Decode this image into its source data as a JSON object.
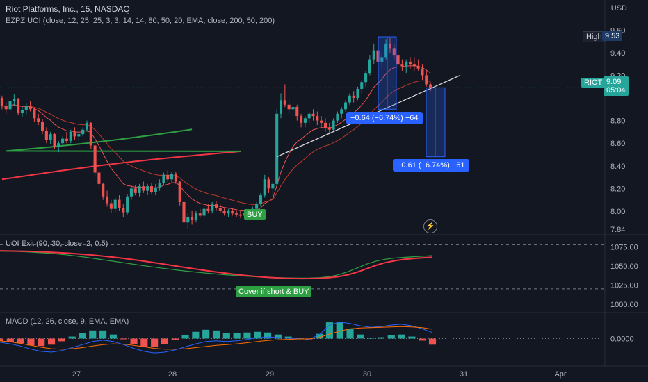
{
  "header": {
    "title": "Riot Platforms, Inc., 15, NASDAQ",
    "indicator": "EZPZ UOI (close, 12, 25, 25, 3, 3, 14, 14, 80, 50, 20, EMA, close, 200, 50, 200)",
    "currency": "USD"
  },
  "price_tags": {
    "high_label": "High",
    "high_value": "9.53",
    "symbol": "RIOT",
    "last_value": "9.09",
    "countdown": "05:04"
  },
  "measurements": {
    "upper": "−0.64 (−6.74%) −64",
    "lower": "−0.61 (−6.74%) −61"
  },
  "signals": {
    "buy": "BUY",
    "cover": "Cover if short & BUY"
  },
  "panes": {
    "uoi_label": "UOI Exit (90, 30, close, 2, 0.5)",
    "macd_label": "MACD (12, 26, close, 9, EMA, EMA)"
  },
  "colors": {
    "background": "#131722",
    "up": "#26a69a",
    "down": "#ef5350",
    "ema_long": "#f23645",
    "ema_green": "#2ea043",
    "measure": "#2962ff"
  },
  "icons": {
    "alert": "lightning-bolt-icon"
  },
  "chart_data": {
    "type": "candlestick",
    "x_ticks": [
      "27",
      "28",
      "29",
      "30",
      "31",
      "Apr"
    ],
    "price_axis": {
      "ticks": [
        "9.60",
        "9.40",
        "9.20",
        "8.80",
        "8.60",
        "8.40",
        "8.20",
        "8.00",
        "7.84"
      ],
      "ylim": [
        7.84,
        9.62
      ]
    },
    "uoi_axis": {
      "ticks": [
        "1075.00",
        "1050.00",
        "1025.00",
        "1000.00"
      ],
      "ylim": [
        998,
        1082
      ]
    },
    "macd_axis": {
      "ticks": [
        "0.0000"
      ],
      "ylim": [
        -0.06,
        0.06
      ]
    },
    "candles_ohlc": [
      [
        9.0,
        9.02,
        8.9,
        8.93
      ],
      [
        8.93,
        8.96,
        8.86,
        8.9
      ],
      [
        8.9,
        9.0,
        8.88,
        8.97
      ],
      [
        8.97,
        9.03,
        8.93,
        8.99
      ],
      [
        8.99,
        9.0,
        8.85,
        8.87
      ],
      [
        8.87,
        8.92,
        8.83,
        8.89
      ],
      [
        8.89,
        8.95,
        8.85,
        8.93
      ],
      [
        8.93,
        8.97,
        8.88,
        8.9
      ],
      [
        8.9,
        8.91,
        8.79,
        8.82
      ],
      [
        8.82,
        8.86,
        8.76,
        8.79
      ],
      [
        8.79,
        8.81,
        8.68,
        8.71
      ],
      [
        8.71,
        8.74,
        8.6,
        8.63
      ],
      [
        8.63,
        8.7,
        8.59,
        8.68
      ],
      [
        8.68,
        8.69,
        8.55,
        8.57
      ],
      [
        8.57,
        8.62,
        8.52,
        8.6
      ],
      [
        8.6,
        8.66,
        8.58,
        8.64
      ],
      [
        8.64,
        8.7,
        8.6,
        8.62
      ],
      [
        8.62,
        8.72,
        8.6,
        8.7
      ],
      [
        8.7,
        8.74,
        8.63,
        8.66
      ],
      [
        8.66,
        8.71,
        8.62,
        8.68
      ],
      [
        8.68,
        8.74,
        8.66,
        8.72
      ],
      [
        8.72,
        8.8,
        8.7,
        8.78
      ],
      [
        8.78,
        8.79,
        8.55,
        8.58
      ],
      [
        8.58,
        8.6,
        8.3,
        8.34
      ],
      [
        8.34,
        8.36,
        8.2,
        8.24
      ],
      [
        8.24,
        8.25,
        8.1,
        8.13
      ],
      [
        8.13,
        8.18,
        8.04,
        8.07
      ],
      [
        8.07,
        8.1,
        7.98,
        8.02
      ],
      [
        8.02,
        8.12,
        7.99,
        8.1
      ],
      [
        8.1,
        8.14,
        8.0,
        8.03
      ],
      [
        8.03,
        8.06,
        7.95,
        7.99
      ],
      [
        7.99,
        8.15,
        7.97,
        8.13
      ],
      [
        8.13,
        8.22,
        8.1,
        8.2
      ],
      [
        8.2,
        8.23,
        8.14,
        8.16
      ],
      [
        8.16,
        8.24,
        8.13,
        8.22
      ],
      [
        8.22,
        8.26,
        8.16,
        8.18
      ],
      [
        8.18,
        8.24,
        8.14,
        8.22
      ],
      [
        8.22,
        8.25,
        8.15,
        8.17
      ],
      [
        8.17,
        8.24,
        8.14,
        8.21
      ],
      [
        8.21,
        8.28,
        8.18,
        8.25
      ],
      [
        8.25,
        8.34,
        8.23,
        8.32
      ],
      [
        8.32,
        8.36,
        8.26,
        8.28
      ],
      [
        8.28,
        8.35,
        8.25,
        8.33
      ],
      [
        8.33,
        8.35,
        8.24,
        8.26
      ],
      [
        8.26,
        8.27,
        8.05,
        8.08
      ],
      [
        8.08,
        8.09,
        7.86,
        7.9
      ],
      [
        7.9,
        7.98,
        7.84,
        7.95
      ],
      [
        7.95,
        8.0,
        7.88,
        7.92
      ],
      [
        7.92,
        8.0,
        7.9,
        7.98
      ],
      [
        7.98,
        8.02,
        7.94,
        7.96
      ],
      [
        7.96,
        8.04,
        7.94,
        8.02
      ],
      [
        8.02,
        8.06,
        7.98,
        8.0
      ],
      [
        8.0,
        8.08,
        7.98,
        8.06
      ],
      [
        8.06,
        8.09,
        8.0,
        8.03
      ],
      [
        8.03,
        8.06,
        7.98,
        8.0
      ],
      [
        8.0,
        8.03,
        7.96,
        7.98
      ],
      [
        7.98,
        8.02,
        7.95,
        8.0
      ],
      [
        8.0,
        8.03,
        7.96,
        7.98
      ],
      [
        7.98,
        8.01,
        7.95,
        7.97
      ],
      [
        7.97,
        8.0,
        7.94,
        7.96
      ],
      [
        7.96,
        8.0,
        7.94,
        7.98
      ],
      [
        7.98,
        8.0,
        7.95,
        7.97
      ],
      [
        7.97,
        8.04,
        7.96,
        8.02
      ],
      [
        8.02,
        8.08,
        8.0,
        8.06
      ],
      [
        8.06,
        8.16,
        8.04,
        8.14
      ],
      [
        8.14,
        8.32,
        8.12,
        8.28
      ],
      [
        8.28,
        8.3,
        8.16,
        8.2
      ],
      [
        8.2,
        8.26,
        8.14,
        8.24
      ],
      [
        8.24,
        8.9,
        8.22,
        8.86
      ],
      [
        8.86,
        9.04,
        8.82,
        8.98
      ],
      [
        8.98,
        9.12,
        8.92,
        8.94
      ],
      [
        8.94,
        8.98,
        8.86,
        8.9
      ],
      [
        8.9,
        8.96,
        8.84,
        8.92
      ],
      [
        8.92,
        8.94,
        8.8,
        8.84
      ],
      [
        8.84,
        8.86,
        8.74,
        8.78
      ],
      [
        8.78,
        8.84,
        8.74,
        8.82
      ],
      [
        8.82,
        8.88,
        8.78,
        8.86
      ],
      [
        8.86,
        8.9,
        8.8,
        8.84
      ],
      [
        8.84,
        8.88,
        8.76,
        8.8
      ],
      [
        8.8,
        8.84,
        8.74,
        8.78
      ],
      [
        8.78,
        8.82,
        8.7,
        8.74
      ],
      [
        8.74,
        8.78,
        8.68,
        8.72
      ],
      [
        8.72,
        8.82,
        8.7,
        8.8
      ],
      [
        8.8,
        8.88,
        8.78,
        8.86
      ],
      [
        8.86,
        8.92,
        8.82,
        8.9
      ],
      [
        8.9,
        8.98,
        8.88,
        8.96
      ],
      [
        8.96,
        9.04,
        8.94,
        9.02
      ],
      [
        9.02,
        9.06,
        8.96,
        9.0
      ],
      [
        9.0,
        9.1,
        8.98,
        9.08
      ],
      [
        9.08,
        9.16,
        9.04,
        9.14
      ],
      [
        9.14,
        9.24,
        9.1,
        9.22
      ],
      [
        9.22,
        9.38,
        9.2,
        9.34
      ],
      [
        9.34,
        9.48,
        9.3,
        9.42
      ],
      [
        9.42,
        9.46,
        9.28,
        9.32
      ],
      [
        9.32,
        9.4,
        9.26,
        9.36
      ],
      [
        9.36,
        9.52,
        9.34,
        9.48
      ],
      [
        9.48,
        9.53,
        9.4,
        9.44
      ],
      [
        9.44,
        9.48,
        9.34,
        9.38
      ],
      [
        9.38,
        9.42,
        9.28,
        9.3
      ],
      [
        9.3,
        9.34,
        9.24,
        9.28
      ],
      [
        9.28,
        9.34,
        9.22,
        9.32
      ],
      [
        9.32,
        9.36,
        9.26,
        9.3
      ],
      [
        9.3,
        9.36,
        9.24,
        9.28
      ],
      [
        9.28,
        9.34,
        9.24,
        9.26
      ],
      [
        9.26,
        9.3,
        9.16,
        9.2
      ],
      [
        9.2,
        9.24,
        9.1,
        9.12
      ],
      [
        9.12,
        9.14,
        9.06,
        9.09
      ]
    ],
    "uoi_series": {
      "green": [
        1069.6,
        1069.3,
        1069.0,
        1068.5,
        1067.8,
        1067.0,
        1066.0,
        1064.8,
        1063.4,
        1061.8,
        1060.0,
        1058.2,
        1056.4,
        1054.6,
        1052.8,
        1051.0,
        1049.3,
        1047.6,
        1046.0,
        1044.5,
        1043.1,
        1041.8,
        1040.6,
        1039.5,
        1038.5,
        1037.6,
        1036.8,
        1036.1,
        1035.5,
        1035.0,
        1034.6,
        1034.3,
        1034.2,
        1034.3,
        1034.8,
        1036.0,
        1038.5,
        1042.5,
        1047.5,
        1052.5,
        1056.5,
        1059.0,
        1060.5,
        1061.5,
        1062.3,
        1063.0,
        1063.7
      ],
      "red": [
        1070.0,
        1069.8,
        1069.6,
        1069.3,
        1068.9,
        1068.4,
        1067.8,
        1067.1,
        1066.3,
        1065.4,
        1064.3,
        1063.1,
        1061.8,
        1060.3,
        1058.7,
        1057.0,
        1055.2,
        1053.3,
        1051.4,
        1049.5,
        1047.6,
        1045.7,
        1043.9,
        1042.2,
        1040.6,
        1039.1,
        1037.7,
        1036.5,
        1035.5,
        1034.7,
        1034.1,
        1033.7,
        1033.5,
        1033.6,
        1034.0,
        1034.8,
        1036.2,
        1038.5,
        1042.0,
        1046.5,
        1051.0,
        1054.5,
        1057.0,
        1058.8,
        1060.0,
        1060.9,
        1061.6
      ]
    },
    "macd_series": {
      "macd": [
        -0.01,
        -0.014,
        -0.02,
        -0.028,
        -0.034,
        -0.036,
        -0.032,
        -0.024,
        -0.016,
        -0.008,
        -0.004,
        -0.008,
        -0.016,
        -0.026,
        -0.034,
        -0.038,
        -0.036,
        -0.03,
        -0.022,
        -0.014,
        -0.008,
        -0.006,
        -0.008,
        -0.006,
        -0.002,
        0.002,
        0.004,
        0.003,
        0.001,
        0.0,
        -0.002,
        0.01,
        0.036,
        0.044,
        0.04,
        0.034,
        0.03,
        0.032,
        0.036,
        0.038,
        0.034,
        0.026,
        0.016
      ],
      "signal": [
        -0.006,
        -0.009,
        -0.013,
        -0.018,
        -0.023,
        -0.027,
        -0.028,
        -0.027,
        -0.024,
        -0.02,
        -0.016,
        -0.014,
        -0.015,
        -0.018,
        -0.022,
        -0.026,
        -0.028,
        -0.028,
        -0.027,
        -0.024,
        -0.021,
        -0.018,
        -0.016,
        -0.014,
        -0.011,
        -0.008,
        -0.005,
        -0.003,
        -0.002,
        -0.001,
        -0.001,
        0.003,
        0.012,
        0.02,
        0.026,
        0.028,
        0.029,
        0.03,
        0.031,
        0.032,
        0.031,
        0.029,
        0.025
      ]
    }
  }
}
